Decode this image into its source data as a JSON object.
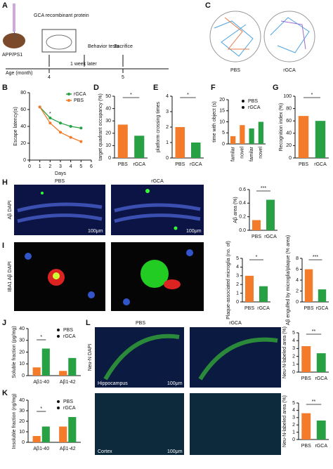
{
  "schematic": {
    "panel": "A",
    "protein": "GCA recombinant protein",
    "mouse": "APP/PS1",
    "behavior": "Behavior tests",
    "sacrifice": "Sacrifice",
    "age": "Age (month)",
    "start": "4",
    "interval": "1 week later",
    "end": "5"
  },
  "trajectories": {
    "panel": "C",
    "labels": [
      "PBS",
      "rGCA"
    ]
  },
  "images_h": {
    "panel": "H",
    "columns": [
      "PBS",
      "rGCA"
    ],
    "stain": "Aβ DAPI",
    "scale": "100μm"
  },
  "images_i": {
    "panel": "I",
    "stain": "IBA1 Aβ DAPI"
  },
  "images_l": {
    "panel": "L",
    "columns": [
      "PBS",
      "rGCA"
    ],
    "stain": "Neu-N DAPI",
    "regions": [
      "Hippocampus",
      "Cortex"
    ],
    "scale": "100μm"
  },
  "chart_data": [
    {
      "panel": "B",
      "type": "line",
      "ylabel": "Escape latency(s)",
      "xlabel": "Days",
      "x": [
        1,
        2,
        3,
        4,
        5
      ],
      "series": [
        {
          "name": "rGCA",
          "color": "#27a143",
          "values": [
            63,
            50,
            44,
            40,
            38
          ]
        },
        {
          "name": "PBS",
          "color": "#f47b2a",
          "values": [
            63,
            44,
            33,
            27,
            22
          ]
        }
      ],
      "xlim": [
        0,
        6
      ],
      "xticks": [
        0,
        1,
        2,
        3,
        4,
        5,
        6
      ],
      "ylim": [
        0,
        80
      ],
      "yticks": [
        0,
        20,
        40,
        60,
        80
      ],
      "significance": "*"
    },
    {
      "panel": "D",
      "type": "bar",
      "ylabel": "target quadrant occupancy (%)",
      "categories": [
        "PBS",
        "rGCA"
      ],
      "values": [
        27,
        18
      ],
      "colors": [
        "#f47b2a",
        "#27a143"
      ],
      "ylim": [
        0,
        50
      ],
      "yticks": [
        0,
        10,
        20,
        30,
        40,
        50
      ],
      "significance": "*"
    },
    {
      "panel": "E",
      "type": "bar",
      "ylabel": "platform crossing times",
      "categories": [
        "PBS",
        "rGCA"
      ],
      "values": [
        2.0,
        1.0
      ],
      "colors": [
        "#f47b2a",
        "#27a143"
      ],
      "ylim": [
        0,
        4
      ],
      "yticks": [
        0,
        1,
        2,
        3,
        4
      ],
      "significance": "*"
    },
    {
      "panel": "F",
      "type": "bar",
      "ylabel": "time with object (s)",
      "categories": [
        "familar",
        "novel",
        "familar",
        "novel"
      ],
      "series": [
        {
          "name": "PBS",
          "color": "#f47b2a",
          "values": [
            3.5,
            8.5,
            null,
            null
          ]
        },
        {
          "name": "rGCA",
          "color": "#27a143",
          "values": [
            null,
            null,
            7,
            10
          ]
        }
      ],
      "ylim": [
        0,
        20
      ],
      "yticks": [
        0,
        5,
        10,
        15,
        20
      ]
    },
    {
      "panel": "G",
      "type": "bar",
      "ylabel": "Recognition index (%)",
      "categories": [
        "PBS",
        "rGCA"
      ],
      "values": [
        68,
        60
      ],
      "colors": [
        "#f47b2a",
        "#27a143"
      ],
      "ylim": [
        0,
        100
      ],
      "yticks": [
        0,
        20,
        40,
        60,
        80,
        100
      ],
      "significance": "*"
    },
    {
      "type": "bar",
      "ylabel": "Aβ area (%)",
      "categories": [
        "PBS",
        "rGCA"
      ],
      "values": [
        0.15,
        0.45
      ],
      "colors": [
        "#f47b2a",
        "#27a143"
      ],
      "ylim": [
        0,
        0.6
      ],
      "yticks": [
        {
          "value": 0,
          "label": "0.0"
        },
        0.2,
        0.4,
        0.6
      ],
      "significance": "***"
    },
    {
      "type": "bar",
      "ylabel": "Plaque-associated microglia (no. of)",
      "categories": [
        "PBS",
        "rGCA"
      ],
      "values": [
        3.0,
        1.8
      ],
      "colors": [
        "#f47b2a",
        "#27a143"
      ],
      "ylim": [
        0,
        5
      ],
      "yticks": [
        0,
        1,
        2,
        3,
        4,
        5
      ],
      "significance": "*"
    },
    {
      "type": "bar",
      "ylabel": "Aβ engulfed by microglia/plaque (% area)",
      "categories": [
        "PBS",
        "rGCA"
      ],
      "values": [
        6,
        2.3
      ],
      "colors": [
        "#f47b2a",
        "#27a143"
      ],
      "ylim": [
        0,
        8
      ],
      "yticks": [
        0,
        2,
        4,
        6,
        8
      ],
      "significance": "***"
    },
    {
      "panel": "J",
      "type": "bar",
      "ylabel": "Soluble fraction (pg/mg)",
      "categories": [
        "Aβ1-40",
        "Aβ1-42"
      ],
      "series": [
        {
          "name": "PBS",
          "color": "#f47b2a",
          "values": [
            7,
            4
          ]
        },
        {
          "name": "rGCA",
          "color": "#27a143",
          "values": [
            23,
            15
          ]
        }
      ],
      "ylim": [
        0,
        40
      ],
      "yticks": [
        0,
        10,
        20,
        30,
        40
      ],
      "significance": "*"
    },
    {
      "panel": "K",
      "type": "bar",
      "ylabel": "Insoluble fraction (ng/mg)",
      "categories": [
        "Aβ1-40",
        "Aβ1-42"
      ],
      "series": [
        {
          "name": "PBS",
          "color": "#f47b2a",
          "values": [
            6,
            15
          ]
        },
        {
          "name": "rGCA",
          "color": "#27a143",
          "values": [
            15,
            24
          ]
        }
      ],
      "ylim": [
        0,
        40
      ],
      "yticks": [
        0,
        10,
        20,
        30,
        40
      ],
      "significance": "*"
    },
    {
      "type": "bar",
      "ylabel": "Neu-N-labeled area (%)",
      "categories": [
        "PBS",
        "rGCA"
      ],
      "values": [
        3.3,
        2.4
      ],
      "colors": [
        "#f47b2a",
        "#27a143"
      ],
      "ylim": [
        0,
        5
      ],
      "yticks": [
        0,
        1,
        2,
        3,
        4,
        5
      ],
      "significance": "**"
    },
    {
      "type": "bar",
      "ylabel": "Neu-N-labeled area (%)",
      "categories": [
        "PBS",
        "rGCA"
      ],
      "values": [
        3.6,
        2.6
      ],
      "colors": [
        "#f47b2a",
        "#27a143"
      ],
      "ylim": [
        0,
        5
      ],
      "yticks": [
        0,
        1,
        2,
        3,
        4,
        5
      ],
      "significance": "**"
    }
  ]
}
